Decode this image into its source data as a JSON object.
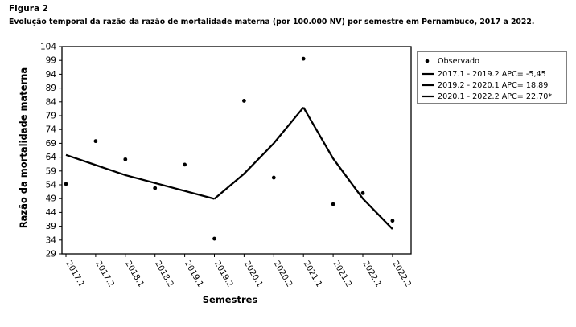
{
  "figure": {
    "label": "Figura 2",
    "caption": "Evolução temporal da razão da razão de mortalidade materna (por 100.000 NV) por semestre em Pernambuco, 2017 a 2022."
  },
  "chart_data": {
    "type": "scatter",
    "xlabel": "Semestres",
    "ylabel": "Razão da mortalidade materna",
    "categories": [
      "2017.1",
      "2017.2",
      "2018.1",
      "2018.2",
      "2019.1",
      "2019.2",
      "2020.1",
      "2020.2",
      "2021.1",
      "2021.2",
      "2022.1",
      "2022.2"
    ],
    "yticks": [
      29,
      34,
      39,
      44,
      49,
      54,
      59,
      64,
      69,
      74,
      79,
      84,
      89,
      94,
      99,
      104
    ],
    "ylim": [
      29,
      104
    ],
    "grid": false,
    "legend_position": "top-right",
    "observed": {
      "name": "Observado",
      "values": [
        54.3,
        69.8,
        63.2,
        52.8,
        61.3,
        34.5,
        84.4,
        56.6,
        99.6,
        47.0,
        51.0,
        41.0
      ]
    },
    "trend_segments": [
      {
        "name": "2017.1 - 2019.2 APC= -5,45",
        "x": [
          "2017.1",
          "2018.1",
          "2019.2"
        ],
        "values": [
          64.8,
          57.5,
          48.9
        ]
      },
      {
        "name": "2019.2 - 2020.1 APC= 18,89",
        "x": [
          "2019.2",
          "2020.1",
          "2020.2",
          "2021.1"
        ],
        "values": [
          48.9,
          58.0,
          69.0,
          82.0
        ]
      },
      {
        "name": "2020.1 - 2022.2 APC= 22,70*",
        "x": [
          "2021.1",
          "2021.2",
          "2022.1",
          "2022.2"
        ],
        "values": [
          82.0,
          63.5,
          49.0,
          38.0
        ]
      }
    ],
    "colors": {
      "line": "#000000",
      "marker": "#000000"
    }
  }
}
